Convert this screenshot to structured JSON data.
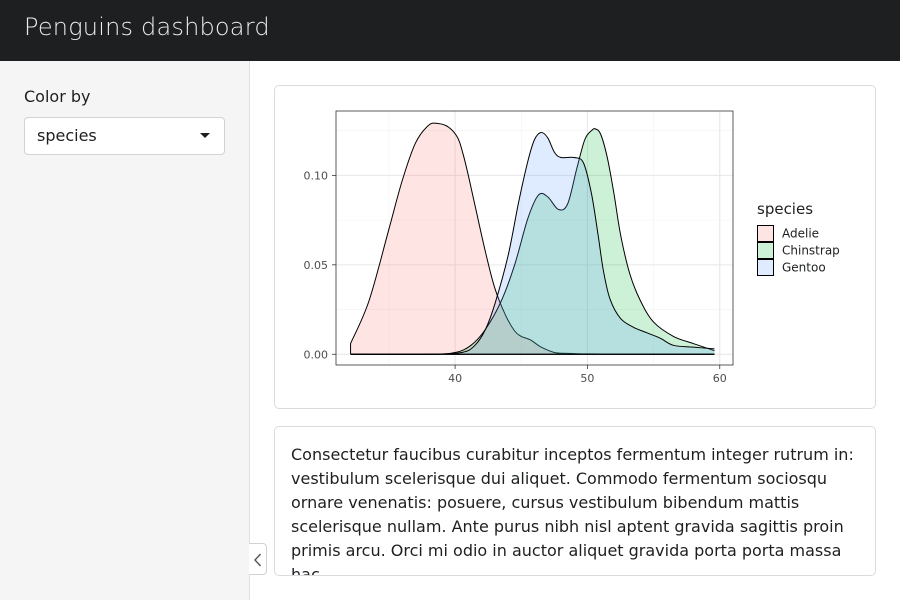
{
  "header": {
    "title": "Penguins dashboard"
  },
  "sidebar": {
    "color_by_label": "Color by",
    "select": {
      "value": "species",
      "caret_icon": "caret-down-icon"
    },
    "collapse_icon": "chevron-left-icon"
  },
  "main": {
    "body_text": "Consectetur faucibus curabitur inceptos fermentum integer rutrum in: vestibulum scelerisque dui aliquet. Commodo fermentum sociosqu ornare venenatis: posuere, cursus vestibulum bibendum mattis scelerisque nullam. Ante purus nibh nisl aptent gravida sagittis proin primis arcu. Orci mi odio in auctor aliquet gravida porta porta massa hac."
  },
  "chart_data": {
    "type": "area",
    "title": "",
    "xlabel": "",
    "ylabel": "",
    "xlim": [
      31,
      61
    ],
    "ylim": [
      -0.006,
      0.136
    ],
    "x_ticks": [
      40,
      50,
      60
    ],
    "y_ticks": [
      0.0,
      0.05,
      0.1
    ],
    "y_tick_labels": [
      "0.00",
      "0.05",
      "0.10"
    ],
    "grid": true,
    "legend": {
      "title": "species",
      "placement": "right"
    },
    "series": [
      {
        "name": "Adelie",
        "fill": "#f8766d",
        "x": [
          32.1,
          33.5,
          35,
          36,
          37,
          38,
          38.7,
          39.5,
          40.2,
          40.6,
          41,
          41.6,
          42.3,
          43,
          43.8,
          44.5,
          45,
          45.7,
          46.5,
          47.5,
          48.5,
          50,
          52,
          55,
          59.6
        ],
        "y": [
          0.006,
          0.03,
          0.07,
          0.097,
          0.118,
          0.128,
          0.129,
          0.127,
          0.121,
          0.112,
          0.1,
          0.08,
          0.057,
          0.037,
          0.022,
          0.013,
          0.01,
          0.008,
          0.004,
          0.001,
          0.0005,
          0.0002,
          0.0001,
          0.0,
          0.0
        ]
      },
      {
        "name": "Chinstrap",
        "fill": "#00ba38",
        "x": [
          32.1,
          38,
          40,
          41.2,
          42.3,
          43.5,
          44.5,
          45.5,
          46.3,
          47,
          47.8,
          48.5,
          49.2,
          49.8,
          50.3,
          50.6,
          51,
          51.5,
          52,
          52.5,
          53.2,
          54,
          55,
          56.5,
          58,
          59.6
        ],
        "y": [
          0.0,
          0.0,
          0.001,
          0.005,
          0.014,
          0.03,
          0.05,
          0.076,
          0.089,
          0.088,
          0.081,
          0.084,
          0.104,
          0.12,
          0.125,
          0.126,
          0.123,
          0.11,
          0.09,
          0.067,
          0.045,
          0.03,
          0.018,
          0.01,
          0.006,
          0.002
        ]
      },
      {
        "name": "Gentoo",
        "fill": "#619cff",
        "x": [
          32.1,
          38,
          40.5,
          41.5,
          42.3,
          43,
          44,
          44.8,
          45.5,
          46,
          46.5,
          47,
          47.5,
          48,
          49,
          49.7,
          50.3,
          50.8,
          51.2,
          51.7,
          52.5,
          53.5,
          54.5,
          55.5,
          56.5,
          58,
          59.6
        ],
        "y": [
          0.0,
          0.0,
          0.001,
          0.005,
          0.014,
          0.028,
          0.055,
          0.085,
          0.108,
          0.12,
          0.124,
          0.121,
          0.113,
          0.11,
          0.11,
          0.107,
          0.09,
          0.067,
          0.047,
          0.031,
          0.02,
          0.015,
          0.012,
          0.009,
          0.005,
          0.004,
          0.003
        ]
      }
    ]
  }
}
